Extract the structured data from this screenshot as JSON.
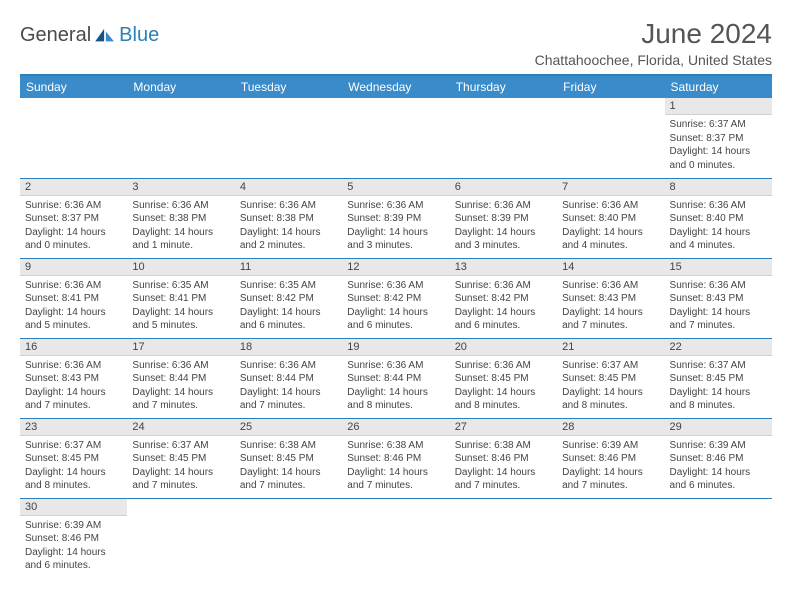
{
  "brand": {
    "part1": "General",
    "part2": "Blue"
  },
  "title": "June 2024",
  "location": "Chattahoochee, Florida, United States",
  "colors": {
    "header_bg": "#3a8bc9",
    "border": "#2c7fb8",
    "daynum_bg": "#e8e8e8",
    "text": "#444444"
  },
  "weekdays": [
    "Sunday",
    "Monday",
    "Tuesday",
    "Wednesday",
    "Thursday",
    "Friday",
    "Saturday"
  ],
  "first_weekday_index": 6,
  "days": [
    {
      "n": 1,
      "sunrise": "6:37 AM",
      "sunset": "8:37 PM",
      "dl_h": 14,
      "dl_m": 0
    },
    {
      "n": 2,
      "sunrise": "6:36 AM",
      "sunset": "8:37 PM",
      "dl_h": 14,
      "dl_m": 0
    },
    {
      "n": 3,
      "sunrise": "6:36 AM",
      "sunset": "8:38 PM",
      "dl_h": 14,
      "dl_m": 1
    },
    {
      "n": 4,
      "sunrise": "6:36 AM",
      "sunset": "8:38 PM",
      "dl_h": 14,
      "dl_m": 2
    },
    {
      "n": 5,
      "sunrise": "6:36 AM",
      "sunset": "8:39 PM",
      "dl_h": 14,
      "dl_m": 3
    },
    {
      "n": 6,
      "sunrise": "6:36 AM",
      "sunset": "8:39 PM",
      "dl_h": 14,
      "dl_m": 3
    },
    {
      "n": 7,
      "sunrise": "6:36 AM",
      "sunset": "8:40 PM",
      "dl_h": 14,
      "dl_m": 4
    },
    {
      "n": 8,
      "sunrise": "6:36 AM",
      "sunset": "8:40 PM",
      "dl_h": 14,
      "dl_m": 4
    },
    {
      "n": 9,
      "sunrise": "6:36 AM",
      "sunset": "8:41 PM",
      "dl_h": 14,
      "dl_m": 5
    },
    {
      "n": 10,
      "sunrise": "6:35 AM",
      "sunset": "8:41 PM",
      "dl_h": 14,
      "dl_m": 5
    },
    {
      "n": 11,
      "sunrise": "6:35 AM",
      "sunset": "8:42 PM",
      "dl_h": 14,
      "dl_m": 6
    },
    {
      "n": 12,
      "sunrise": "6:36 AM",
      "sunset": "8:42 PM",
      "dl_h": 14,
      "dl_m": 6
    },
    {
      "n": 13,
      "sunrise": "6:36 AM",
      "sunset": "8:42 PM",
      "dl_h": 14,
      "dl_m": 6
    },
    {
      "n": 14,
      "sunrise": "6:36 AM",
      "sunset": "8:43 PM",
      "dl_h": 14,
      "dl_m": 7
    },
    {
      "n": 15,
      "sunrise": "6:36 AM",
      "sunset": "8:43 PM",
      "dl_h": 14,
      "dl_m": 7
    },
    {
      "n": 16,
      "sunrise": "6:36 AM",
      "sunset": "8:43 PM",
      "dl_h": 14,
      "dl_m": 7
    },
    {
      "n": 17,
      "sunrise": "6:36 AM",
      "sunset": "8:44 PM",
      "dl_h": 14,
      "dl_m": 7
    },
    {
      "n": 18,
      "sunrise": "6:36 AM",
      "sunset": "8:44 PM",
      "dl_h": 14,
      "dl_m": 7
    },
    {
      "n": 19,
      "sunrise": "6:36 AM",
      "sunset": "8:44 PM",
      "dl_h": 14,
      "dl_m": 8
    },
    {
      "n": 20,
      "sunrise": "6:36 AM",
      "sunset": "8:45 PM",
      "dl_h": 14,
      "dl_m": 8
    },
    {
      "n": 21,
      "sunrise": "6:37 AM",
      "sunset": "8:45 PM",
      "dl_h": 14,
      "dl_m": 8
    },
    {
      "n": 22,
      "sunrise": "6:37 AM",
      "sunset": "8:45 PM",
      "dl_h": 14,
      "dl_m": 8
    },
    {
      "n": 23,
      "sunrise": "6:37 AM",
      "sunset": "8:45 PM",
      "dl_h": 14,
      "dl_m": 8
    },
    {
      "n": 24,
      "sunrise": "6:37 AM",
      "sunset": "8:45 PM",
      "dl_h": 14,
      "dl_m": 7
    },
    {
      "n": 25,
      "sunrise": "6:38 AM",
      "sunset": "8:45 PM",
      "dl_h": 14,
      "dl_m": 7
    },
    {
      "n": 26,
      "sunrise": "6:38 AM",
      "sunset": "8:46 PM",
      "dl_h": 14,
      "dl_m": 7
    },
    {
      "n": 27,
      "sunrise": "6:38 AM",
      "sunset": "8:46 PM",
      "dl_h": 14,
      "dl_m": 7
    },
    {
      "n": 28,
      "sunrise": "6:39 AM",
      "sunset": "8:46 PM",
      "dl_h": 14,
      "dl_m": 7
    },
    {
      "n": 29,
      "sunrise": "6:39 AM",
      "sunset": "8:46 PM",
      "dl_h": 14,
      "dl_m": 6
    },
    {
      "n": 30,
      "sunrise": "6:39 AM",
      "sunset": "8:46 PM",
      "dl_h": 14,
      "dl_m": 6
    }
  ],
  "labels": {
    "sunrise": "Sunrise:",
    "sunset": "Sunset:",
    "daylight": "Daylight:",
    "hours": "hours",
    "and": "and",
    "minute": "minute.",
    "minutes": "minutes."
  }
}
